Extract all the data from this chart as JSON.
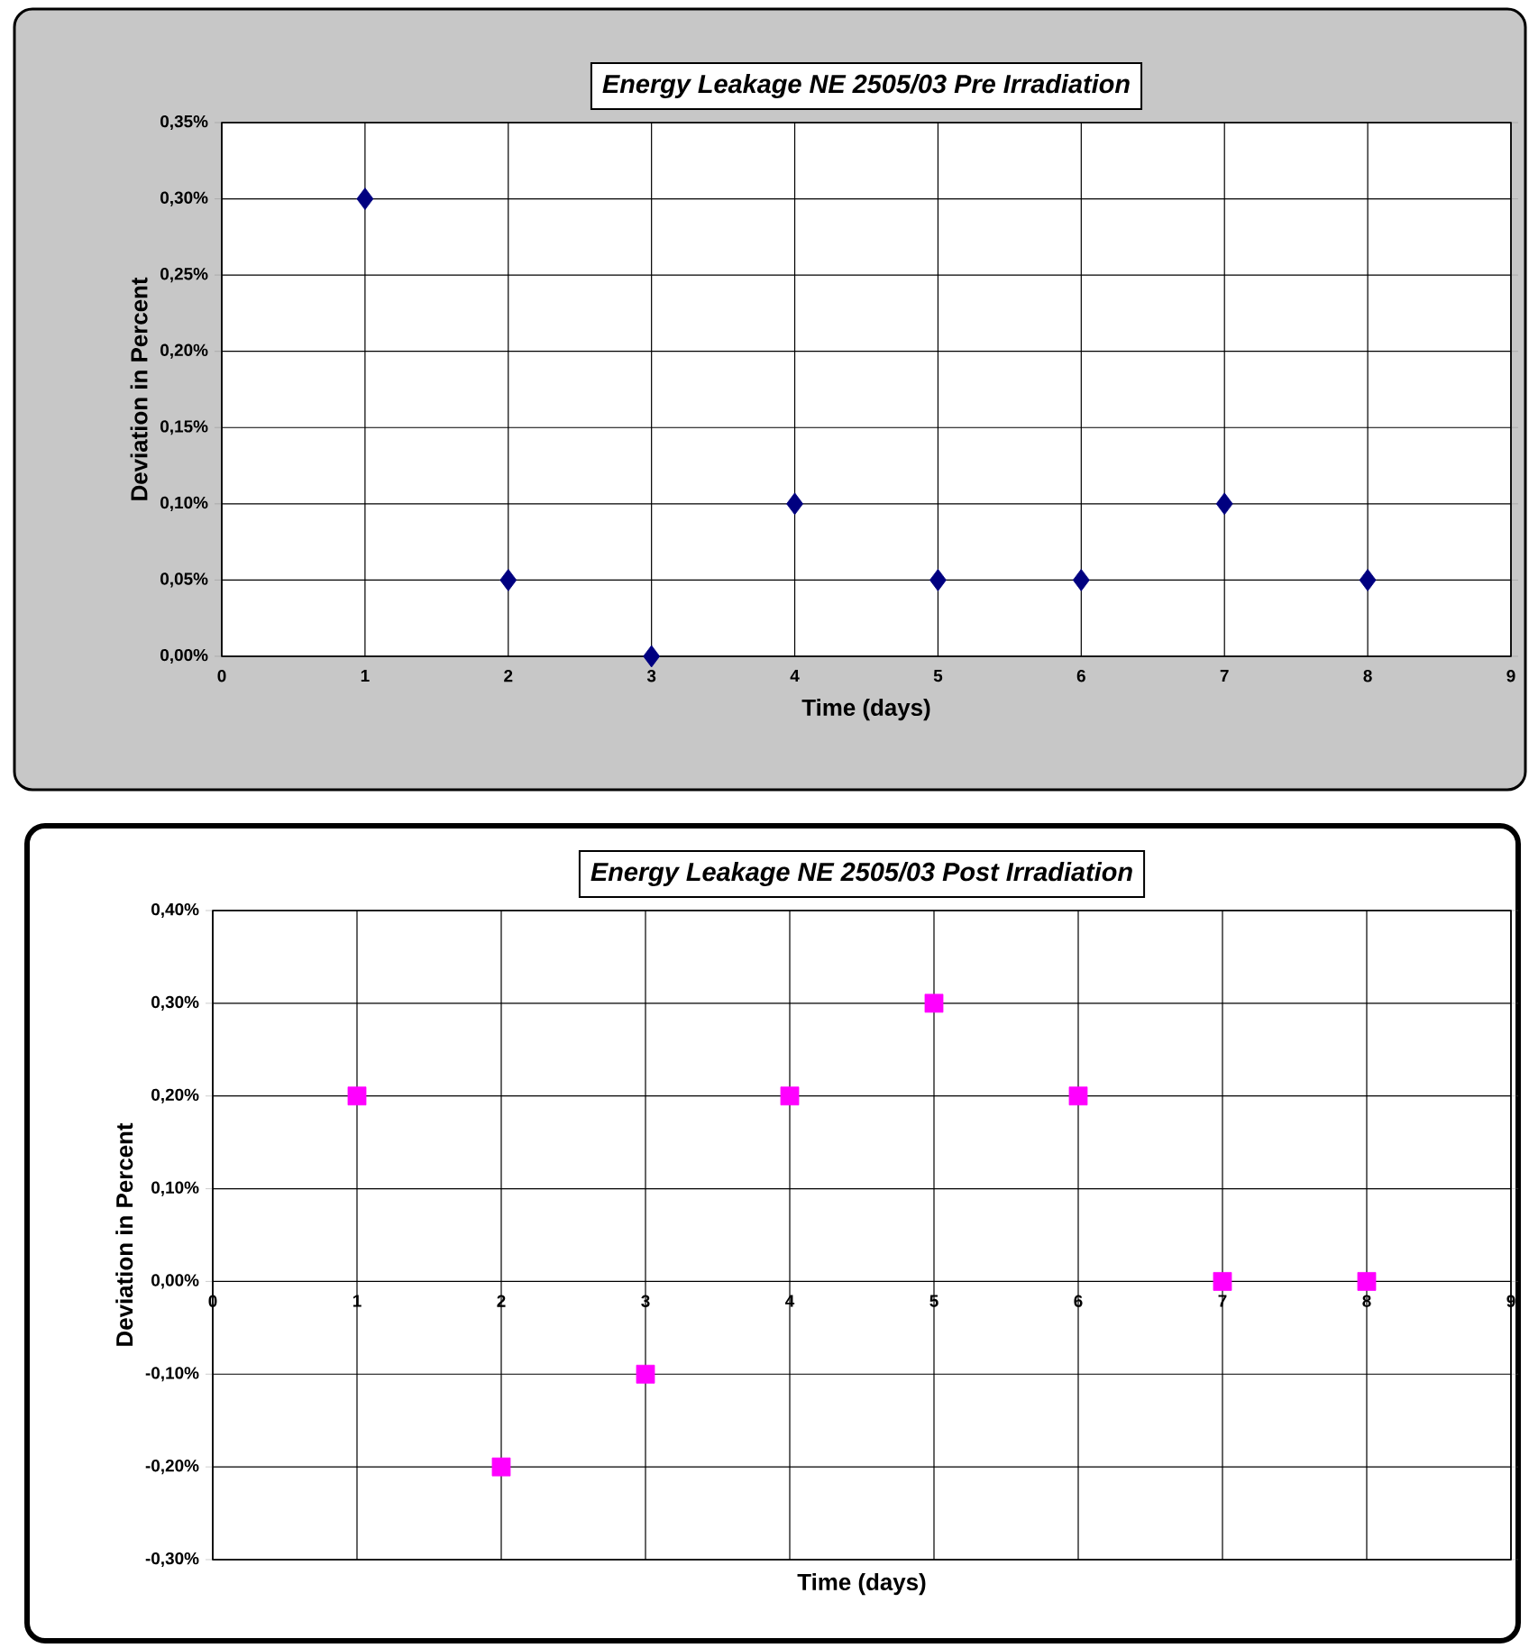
{
  "chart_data": [
    {
      "type": "scatter",
      "title": "Energy Leakage NE 2505/03 Pre Irradiation",
      "xlabel": "Time (days)",
      "ylabel": "Deviation in Percent",
      "x": [
        1,
        2,
        3,
        4,
        5,
        6,
        7,
        8
      ],
      "values": [
        0.3,
        0.05,
        0.0,
        0.1,
        0.05,
        0.05,
        0.1,
        0.05
      ],
      "color": "#000080",
      "marker": "diamond",
      "xlim": [
        0,
        9
      ],
      "xticks": [
        0,
        1,
        2,
        3,
        4,
        5,
        6,
        7,
        8,
        9
      ],
      "ylim": [
        0,
        0.35
      ],
      "yticks": [
        {
          "value": 0,
          "label": "0,00%"
        },
        {
          "value": 0.05,
          "label": "0,05%"
        },
        {
          "value": 0.1,
          "label": "0,10%"
        },
        {
          "value": 0.15,
          "label": "0,15%"
        },
        {
          "value": 0.2,
          "label": "0,20%"
        },
        {
          "value": 0.25,
          "label": "0,25%"
        },
        {
          "value": 0.3,
          "label": "0,30%"
        },
        {
          "value": 0.35,
          "label": "0,35%"
        }
      ],
      "grid": true
    },
    {
      "type": "scatter",
      "title": "Energy Leakage NE 2505/03 Post Irradiation",
      "xlabel": "Time (days)",
      "ylabel": "Deviation in Percent",
      "x": [
        1,
        2,
        3,
        4,
        5,
        6,
        7,
        8
      ],
      "values": [
        0.2,
        -0.2,
        -0.1,
        0.2,
        0.3,
        0.2,
        0.0,
        0.0
      ],
      "color": "#ff00ff",
      "marker": "square",
      "xlim": [
        0,
        9
      ],
      "xticks": [
        0,
        1,
        2,
        3,
        4,
        5,
        6,
        7,
        8,
        9
      ],
      "ylim": [
        -0.3,
        0.4
      ],
      "yticks": [
        {
          "value": -0.3,
          "label": "-0,30%"
        },
        {
          "value": -0.2,
          "label": "-0,20%"
        },
        {
          "value": -0.1,
          "label": "-0,10%"
        },
        {
          "value": 0,
          "label": "0,00%"
        },
        {
          "value": 0.1,
          "label": "0,10%"
        },
        {
          "value": 0.2,
          "label": "0,20%"
        },
        {
          "value": 0.3,
          "label": "0,30%"
        },
        {
          "value": 0.4,
          "label": "0,40%"
        }
      ],
      "grid": true
    }
  ]
}
